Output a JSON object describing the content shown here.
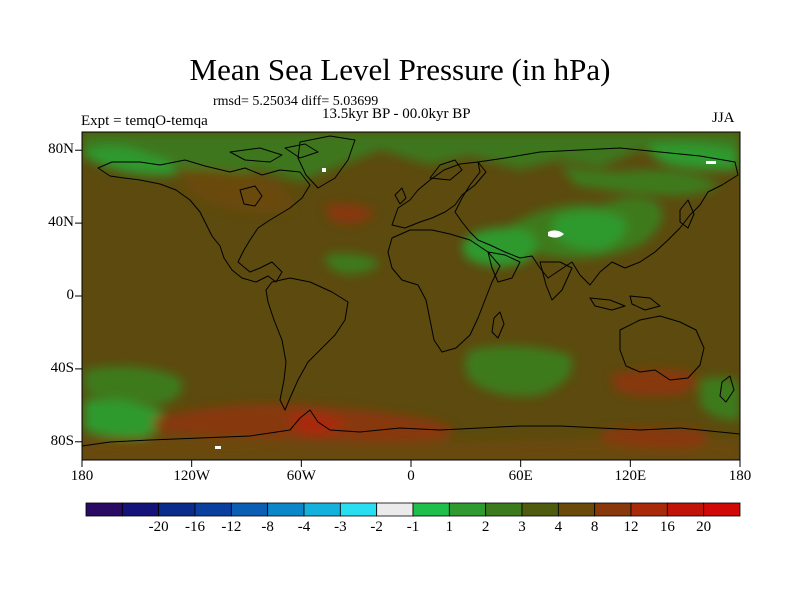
{
  "title": "Mean Sea Level Pressure (in hPa)",
  "stats_line": "rmsd= 5.25034 diff= 5.03699",
  "period": "13.5kyr BP - 00.0kyr BP",
  "experiment": "Expt = temqO-temqa",
  "season": "JJA",
  "map": {
    "projection": "cylindrical equidistant",
    "lon_range": [
      -180,
      180
    ],
    "lat_range": [
      -90,
      90
    ],
    "lat_ticks": [
      {
        "value": 80,
        "label": "80N"
      },
      {
        "value": 40,
        "label": "40N"
      },
      {
        "value": 0,
        "label": "0"
      },
      {
        "value": -40,
        "label": "40S"
      },
      {
        "value": -80,
        "label": "80S"
      }
    ],
    "lon_ticks": [
      {
        "value": -180,
        "label": "180"
      },
      {
        "value": -120,
        "label": "120W"
      },
      {
        "value": -60,
        "label": "60W"
      },
      {
        "value": 0,
        "label": "0"
      },
      {
        "value": 60,
        "label": "60E"
      },
      {
        "value": 120,
        "label": "120E"
      },
      {
        "value": 180,
        "label": "180"
      }
    ],
    "background_level": "4 to 8"
  },
  "colorbar": {
    "colors": [
      "#2a0a63",
      "#14137a",
      "#0a2a8c",
      "#0a3fa0",
      "#0a5fb4",
      "#0a87c8",
      "#13b1dc",
      "#28def0",
      "#ebebeb",
      "#1fbf4b",
      "#2f9a2f",
      "#3c7a1e",
      "#4f5c10",
      "#6a4a0a",
      "#88380a",
      "#a82a0a",
      "#c01408",
      "#d00808"
    ],
    "labels": [
      "-20",
      "-16",
      "-12",
      "-8",
      "-4",
      "-3",
      "-2",
      "-1",
      "1",
      "2",
      "3",
      "4",
      "8",
      "12",
      "16",
      "20"
    ]
  },
  "colors": {
    "background_fill": "#5c4a0e",
    "coastline": "#000000"
  }
}
